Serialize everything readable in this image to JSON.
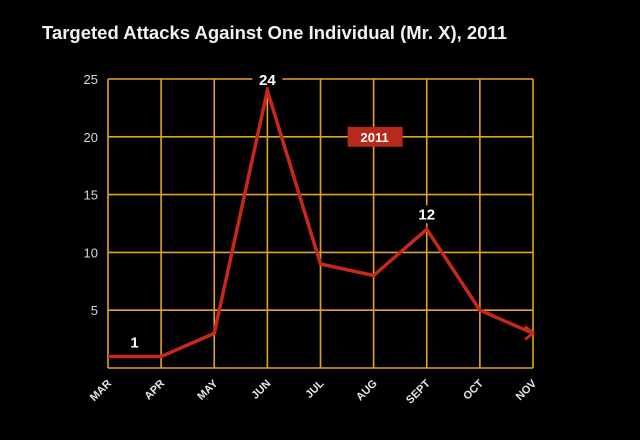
{
  "chart_data": {
    "type": "line",
    "title": "Targeted Attacks Against One Individual (Mr. X), 2011",
    "categories": [
      "MAR",
      "APR",
      "MAY",
      "JUN",
      "JUL",
      "AUG",
      "SEPT",
      "OCT",
      "NOV"
    ],
    "series": [
      {
        "name": "2011",
        "values": [
          1,
          1,
          3,
          24,
          9,
          8,
          12,
          5,
          3
        ]
      }
    ],
    "ylim": [
      0,
      25
    ],
    "yticks": [
      5,
      10,
      15,
      20,
      25
    ],
    "grid": true,
    "legend_placement": "top-center",
    "annotations": [
      {
        "category": "APR",
        "text": "1",
        "between": [
          "MAR",
          "APR"
        ]
      },
      {
        "category": "JUN",
        "text": "24"
      },
      {
        "category": "SEPT",
        "text": "12"
      }
    ],
    "colors": {
      "background": "#000000",
      "grid": "#e0a526",
      "line": "#c8281c",
      "legend_bg": "#b8281c",
      "text": "#f2f2f2"
    }
  }
}
